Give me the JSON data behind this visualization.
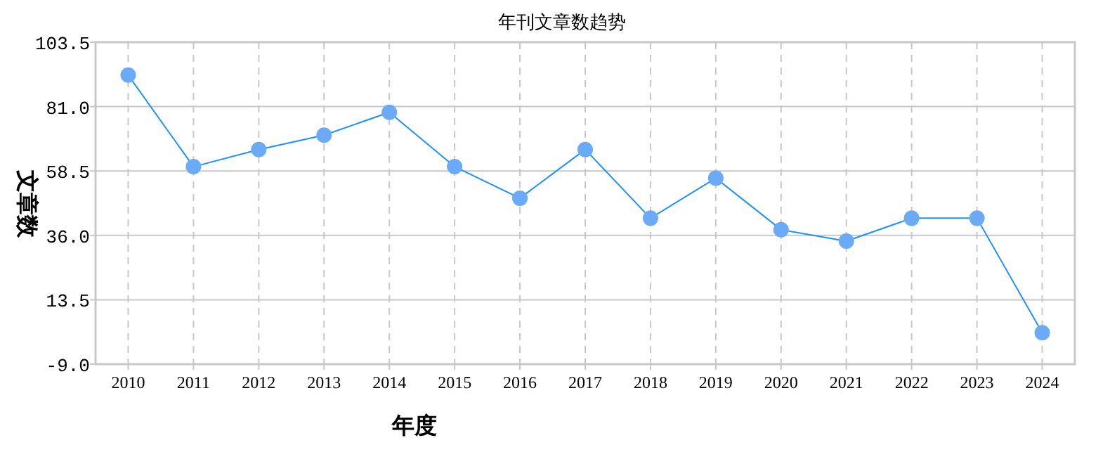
{
  "chart_data": {
    "type": "line",
    "title": "年刊文章数趋势",
    "xlabel": "年度",
    "ylabel": "文章数",
    "categories": [
      "2010",
      "2011",
      "2012",
      "2013",
      "2014",
      "2015",
      "2016",
      "2017",
      "2018",
      "2019",
      "2020",
      "2021",
      "2022",
      "2023",
      "2024"
    ],
    "series": [
      {
        "color": "#1e90ff",
        "values": [
          92,
          60,
          66,
          71,
          79,
          60,
          49,
          66,
          42,
          56,
          38,
          34,
          42,
          42,
          2
        ]
      }
    ],
    "ylim": [
      -9,
      103.5
    ],
    "yticks": [
      {
        "value": -9,
        "label": "-9.0"
      },
      13.5,
      {
        "value": 36,
        "label": "36.0"
      },
      58.5,
      {
        "value": 81,
        "label": "81.0"
      },
      103.5
    ],
    "grid": true,
    "marker": "circle",
    "line_style": "solid"
  }
}
